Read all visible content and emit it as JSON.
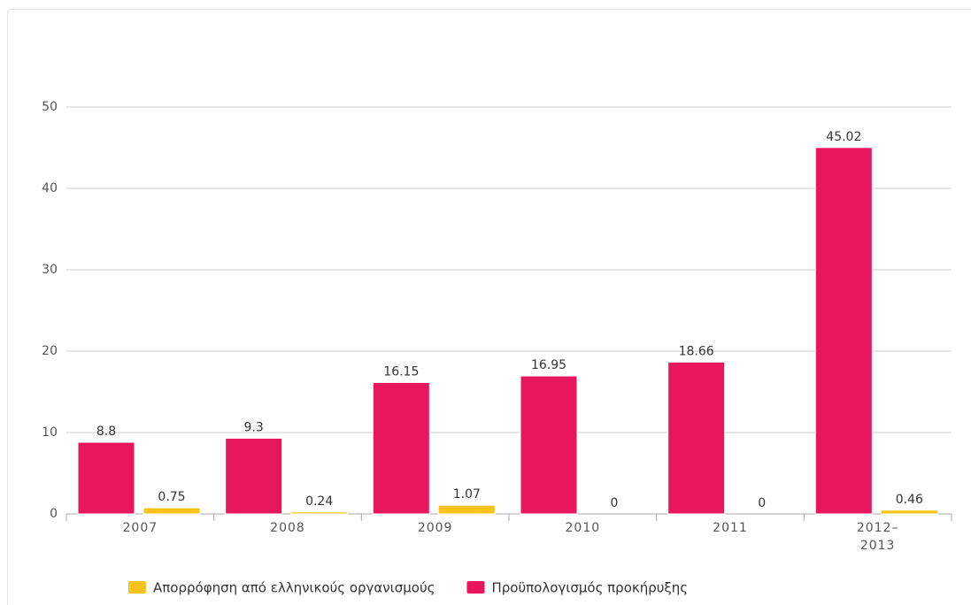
{
  "chart_data": {
    "type": "bar",
    "categories": [
      "2007",
      "2008",
      "2009",
      "2010",
      "2011",
      "2012–2013"
    ],
    "series": [
      {
        "name": "Προϋπολογισμός προκήρυξης",
        "color": "#e8175d",
        "values": [
          8.8,
          9.3,
          16.15,
          16.95,
          18.66,
          45.02
        ]
      },
      {
        "name": "Απορρόφηση από ελληνικούς οργανισμούς",
        "color": "#f7c31a",
        "values": [
          0.75,
          0.24,
          1.07,
          0,
          0,
          0.46
        ]
      }
    ],
    "ylim": [
      0,
      50
    ],
    "yticks": [
      0,
      10,
      20,
      30,
      40,
      50
    ],
    "grid": true,
    "legend_reversed": true
  }
}
